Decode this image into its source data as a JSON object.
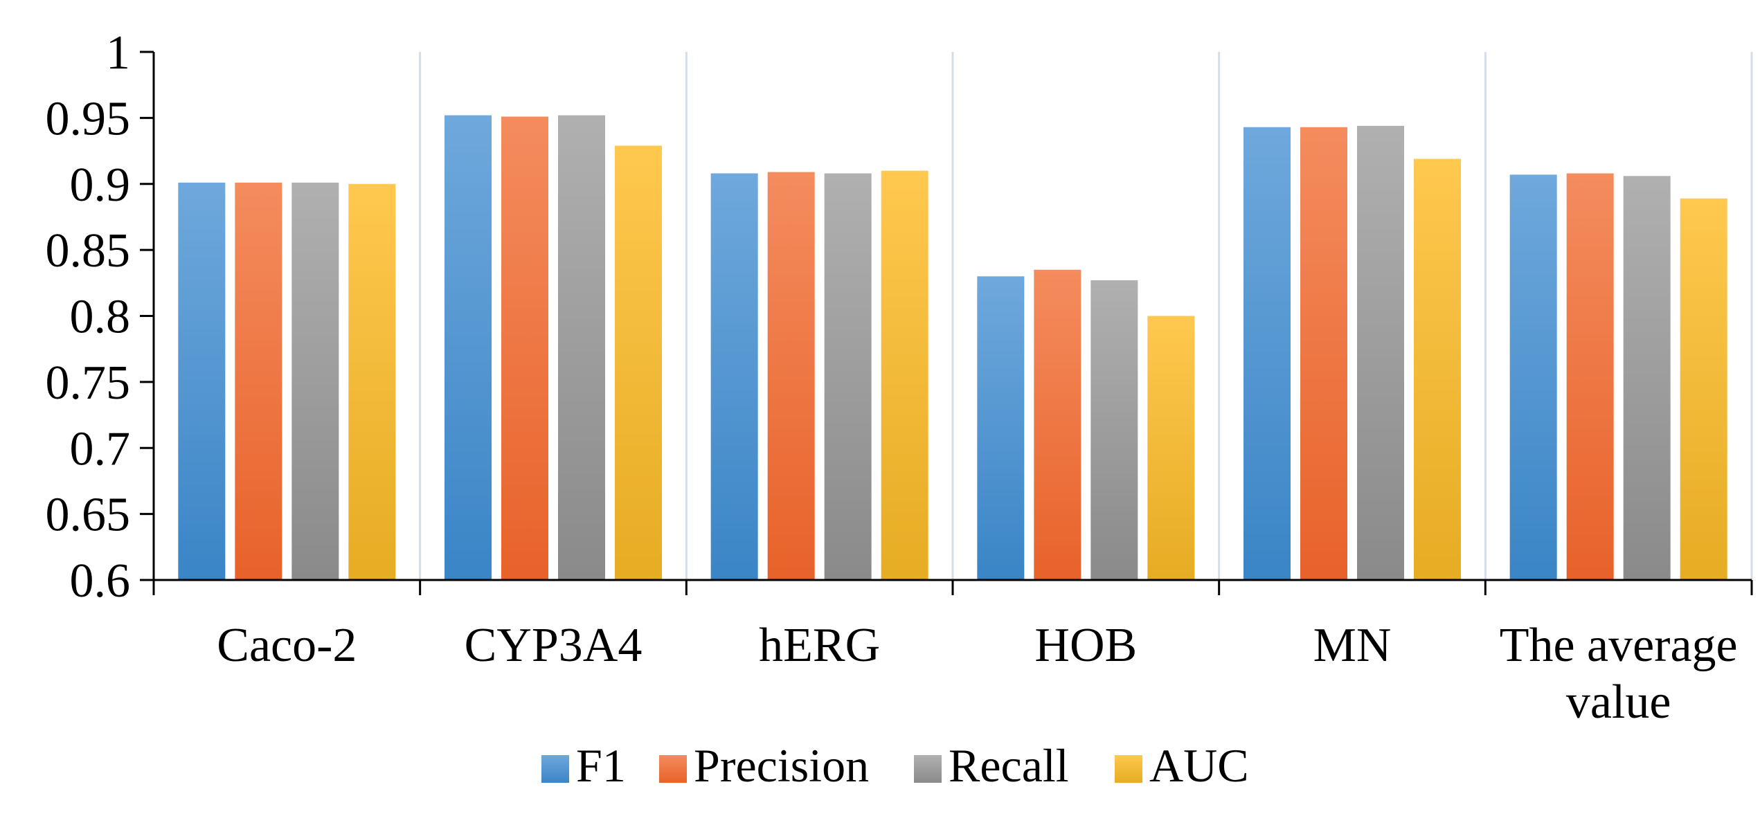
{
  "chart_data": {
    "type": "bar",
    "title": "",
    "xlabel": "",
    "ylabel": "",
    "ylim": [
      0.6,
      1.0
    ],
    "yticks": [
      0.6,
      0.65,
      0.7,
      0.75,
      0.8,
      0.85,
      0.9,
      0.95,
      1
    ],
    "ytick_labels": [
      "0.6",
      "0.65",
      "0.7",
      "0.75",
      "0.8",
      "0.85",
      "0.9",
      "0.95",
      "1"
    ],
    "categories": [
      "Caco-2",
      "CYP3A4",
      "hERG",
      "HOB",
      "MN",
      "The average value"
    ],
    "category_lines": [
      [
        "Caco-2"
      ],
      [
        "CYP3A4"
      ],
      [
        "hERG"
      ],
      [
        "HOB"
      ],
      [
        "MN"
      ],
      [
        "The average",
        "value"
      ]
    ],
    "series": [
      {
        "name": "F1",
        "color_top": "#6fa8dc",
        "color_bottom": "#3a85c6",
        "values": [
          0.901,
          0.952,
          0.908,
          0.83,
          0.943,
          0.907
        ]
      },
      {
        "name": "Precision",
        "color_top": "#f48c5e",
        "color_bottom": "#e8622a",
        "values": [
          0.901,
          0.951,
          0.909,
          0.835,
          0.943,
          0.908
        ]
      },
      {
        "name": "Recall",
        "color_top": "#b0b0b0",
        "color_bottom": "#8a8a8a",
        "values": [
          0.901,
          0.952,
          0.908,
          0.827,
          0.944,
          0.906
        ]
      },
      {
        "name": "AUC",
        "color_top": "#ffc84f",
        "color_bottom": "#e6ac23",
        "values": [
          0.9,
          0.929,
          0.91,
          0.8,
          0.919,
          0.889
        ]
      }
    ],
    "legend_position": "bottom",
    "grid": false
  }
}
